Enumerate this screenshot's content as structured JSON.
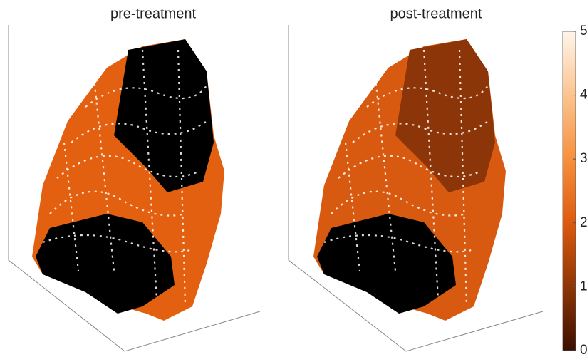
{
  "chart_data": [
    {
      "type": "render",
      "title": "pre-treatment"
    },
    {
      "type": "colorbar-render",
      "title": "post-treatment",
      "clim": [
        0,
        5
      ],
      "cticks": [
        0,
        1,
        2,
        3,
        4,
        5
      ]
    }
  ]
}
